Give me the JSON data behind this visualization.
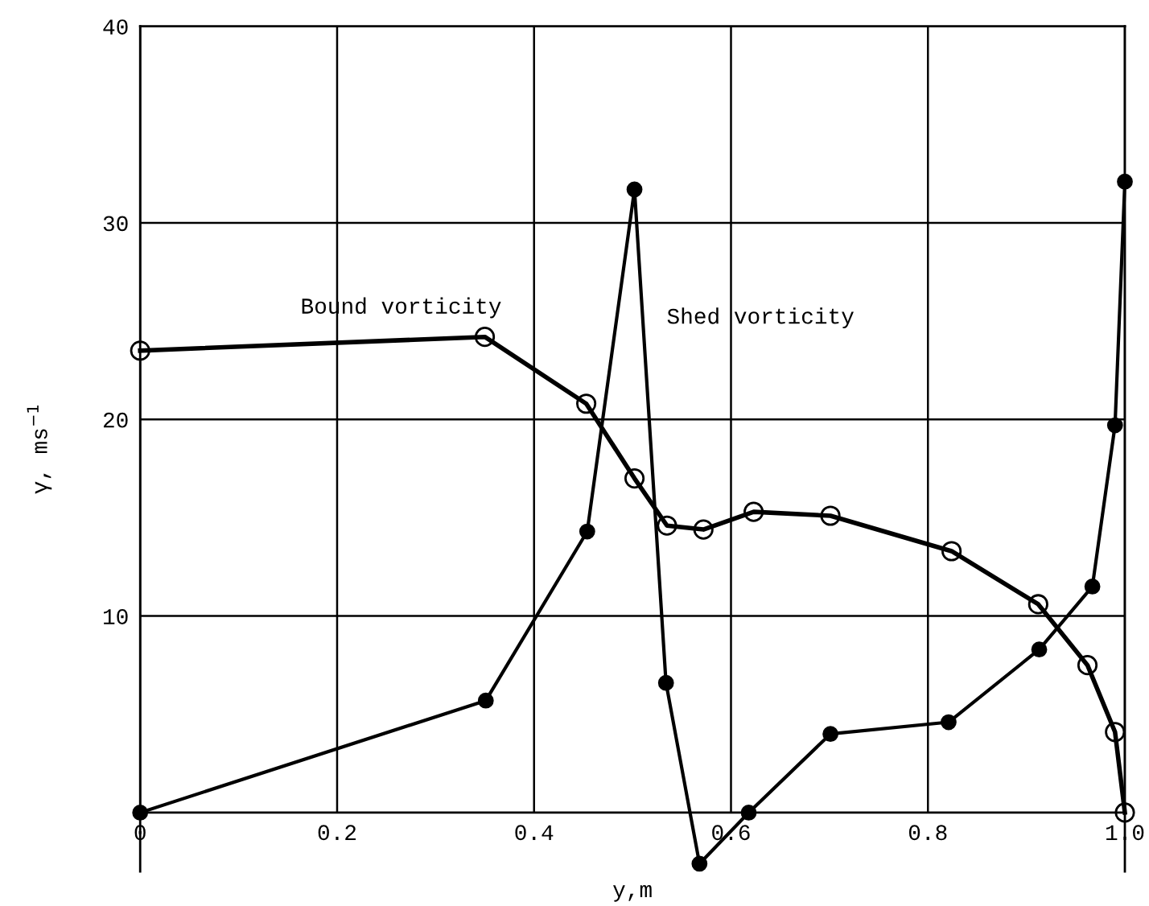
{
  "chart_data": {
    "type": "line",
    "xlabel": "y,m",
    "ylabel": "γ, ms$^{−1}$",
    "xlim": [
      0,
      1.0
    ],
    "ylim": [
      -3,
      40
    ],
    "xticks": [
      0,
      0.2,
      0.4,
      0.6,
      0.8,
      {
        "value": 1.0,
        "label": "1.0"
      }
    ],
    "yticks": [
      10,
      20,
      30,
      40
    ],
    "grid": true,
    "marker": "circle",
    "line_style": "solid",
    "annotations": [
      "Bound vorticity",
      "Shed vorticity"
    ],
    "series": [
      {
        "color": "#000000",
        "colors": [
          "#ffffff",
          "#ffffff",
          "#ffffff",
          "#ffffff",
          "#ffffff",
          "#ffffff",
          "#ffffff",
          "#ffffff",
          "#ffffff",
          "#ffffff",
          "#ffffff",
          "#ffffff",
          "#ffffff"
        ],
        "x": [
          0,
          0.35,
          0.453,
          0.502,
          0.535,
          0.572,
          0.623,
          0.701,
          0.824,
          0.912,
          0.962,
          0.99,
          1.0
        ],
        "values": [
          23.5,
          24.2,
          20.8,
          17.0,
          14.6,
          14.4,
          15.3,
          15.1,
          13.3,
          10.6,
          7.5,
          4.1,
          0
        ]
      },
      {
        "color": "#000000",
        "x": [
          0,
          0.351,
          0.454,
          0.502,
          0.534,
          0.568,
          0.618,
          0.701,
          0.821,
          0.913,
          0.967,
          0.99,
          1.0
        ],
        "values": [
          0,
          5.7,
          14.3,
          31.7,
          6.6,
          -2.6,
          0,
          4.0,
          4.6,
          8.3,
          11.5,
          19.7,
          32.1
        ]
      }
    ]
  }
}
